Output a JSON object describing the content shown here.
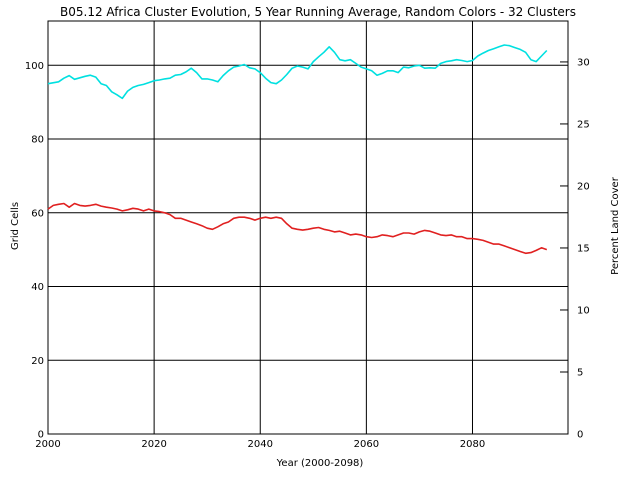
{
  "chart_data": {
    "type": "line",
    "title": "B05.12 Africa Cluster Evolution, 5 Year Running Average, Random Colors - 32 Clusters",
    "xlabel": "Year (2000-2098)",
    "ylabel": "Grid Cells",
    "y2label": "Percent Land Cover",
    "xlim": [
      2000,
      2098
    ],
    "ylim": [
      0,
      112
    ],
    "y2lim": [
      0,
      33.3
    ],
    "grid": true,
    "x_ticks": [
      2000,
      2020,
      2040,
      2060,
      2080
    ],
    "y_ticks": [
      0,
      20,
      40,
      60,
      80,
      100
    ],
    "y2_ticks": [
      0,
      5,
      10,
      15,
      20,
      25,
      30
    ],
    "x_tick_labels": [
      "2000",
      "2020",
      "2040",
      "2060",
      "2080"
    ],
    "y_tick_labels": [
      "0",
      "20",
      "40",
      "60",
      "80",
      "100"
    ],
    "y2_tick_labels": [
      "0",
      "5",
      "10",
      "15",
      "20",
      "25",
      "30"
    ],
    "series": [
      {
        "color": "#00e0e0",
        "x": [
          2000,
          2002,
          2003,
          2004,
          2005,
          2006,
          2007,
          2008,
          2009,
          2010,
          2011,
          2012,
          2013,
          2014,
          2015,
          2016,
          2017,
          2018,
          2019,
          2020,
          2021,
          2022,
          2023,
          2024,
          2025,
          2026,
          2027,
          2028,
          2029,
          2030,
          2031,
          2032,
          2033,
          2034,
          2035,
          2036,
          2037,
          2038,
          2039,
          2040,
          2041,
          2042,
          2043,
          2044,
          2045,
          2046,
          2047,
          2048,
          2049,
          2050,
          2051,
          2052,
          2053,
          2054,
          2055,
          2056,
          2057,
          2058,
          2059,
          2060,
          2061,
          2062,
          2063,
          2064,
          2065,
          2066,
          2067,
          2068,
          2069,
          2070,
          2071,
          2072,
          2073,
          2074,
          2075,
          2076,
          2077,
          2078,
          2079,
          2080,
          2081,
          2082,
          2083,
          2084,
          2085,
          2086,
          2087,
          2088,
          2089,
          2090,
          2091,
          2092,
          2093,
          2094
        ],
        "values": [
          95.0,
          95.5,
          96.5,
          97.2,
          96.2,
          96.6,
          97.0,
          97.3,
          96.8,
          95.0,
          94.5,
          92.8,
          92.0,
          91.0,
          93.0,
          94.0,
          94.5,
          94.8,
          95.3,
          95.8,
          96.0,
          96.3,
          96.5,
          97.3,
          97.5,
          98.2,
          99.2,
          98.0,
          96.3,
          96.3,
          96.0,
          95.5,
          97.2,
          98.5,
          99.5,
          99.8,
          100.2,
          99.3,
          99.0,
          98.0,
          96.5,
          95.3,
          95.0,
          96.0,
          97.5,
          99.2,
          99.8,
          99.5,
          99.0,
          101.0,
          102.3,
          103.5,
          105.0,
          103.5,
          101.5,
          101.2,
          101.5,
          100.5,
          99.5,
          99.0,
          98.5,
          97.3,
          97.8,
          98.5,
          98.5,
          98.0,
          99.5,
          99.3,
          99.8,
          100.0,
          99.2,
          99.3,
          99.2,
          100.5,
          101.0,
          101.2,
          101.5,
          101.3,
          101.0,
          101.3,
          102.5,
          103.3,
          104.0,
          104.5,
          105.0,
          105.5,
          105.3,
          104.8,
          104.3,
          103.5,
          101.5,
          101.0,
          102.5,
          104.0
        ]
      },
      {
        "color": "#e02020",
        "x": [
          2000,
          2001,
          2002,
          2003,
          2004,
          2005,
          2006,
          2007,
          2008,
          2009,
          2010,
          2011,
          2012,
          2013,
          2014,
          2015,
          2016,
          2017,
          2018,
          2019,
          2020,
          2021,
          2022,
          2023,
          2024,
          2025,
          2026,
          2027,
          2028,
          2029,
          2030,
          2031,
          2032,
          2033,
          2034,
          2035,
          2036,
          2037,
          2038,
          2039,
          2040,
          2041,
          2042,
          2043,
          2044,
          2045,
          2046,
          2047,
          2048,
          2049,
          2050,
          2051,
          2052,
          2053,
          2054,
          2055,
          2056,
          2057,
          2058,
          2059,
          2060,
          2061,
          2062,
          2063,
          2064,
          2065,
          2066,
          2067,
          2068,
          2069,
          2070,
          2071,
          2072,
          2073,
          2074,
          2075,
          2076,
          2077,
          2078,
          2079,
          2080,
          2081,
          2082,
          2083,
          2084,
          2085,
          2086,
          2087,
          2088,
          2089,
          2090,
          2091,
          2092,
          2093,
          2094
        ],
        "values": [
          61.0,
          62.0,
          62.3,
          62.5,
          61.5,
          62.5,
          62.0,
          61.8,
          62.0,
          62.3,
          61.8,
          61.5,
          61.3,
          61.0,
          60.5,
          60.8,
          61.2,
          61.0,
          60.5,
          61.0,
          60.5,
          60.3,
          60.0,
          59.5,
          58.5,
          58.5,
          58.0,
          57.5,
          57.0,
          56.5,
          55.8,
          55.5,
          56.2,
          57.0,
          57.5,
          58.5,
          58.8,
          58.8,
          58.5,
          58.0,
          58.5,
          58.8,
          58.5,
          58.8,
          58.5,
          57.0,
          55.8,
          55.5,
          55.3,
          55.5,
          55.8,
          56.0,
          55.5,
          55.2,
          54.8,
          55.0,
          54.5,
          54.0,
          54.2,
          54.0,
          53.5,
          53.3,
          53.5,
          54.0,
          53.8,
          53.5,
          54.0,
          54.5,
          54.5,
          54.2,
          54.8,
          55.2,
          55.0,
          54.5,
          54.0,
          53.8,
          54.0,
          53.5,
          53.5,
          53.0,
          53.0,
          52.8,
          52.5,
          52.0,
          51.5,
          51.5,
          51.0,
          50.5,
          50.0,
          49.5,
          49.0,
          49.2,
          49.8,
          50.5,
          50.0
        ]
      }
    ]
  }
}
